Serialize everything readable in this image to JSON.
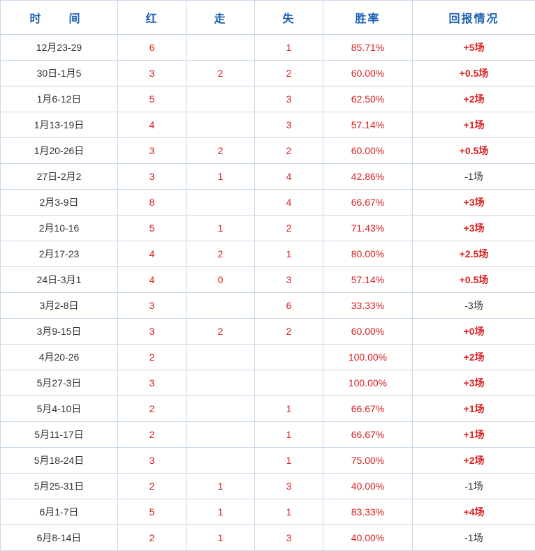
{
  "headers": {
    "time": "时　间",
    "hong": "红",
    "zou": "走",
    "shi": "失",
    "rate": "胜率",
    "return": "回报情况"
  },
  "rows": [
    {
      "time": "12月23-29",
      "hong": "6",
      "zou": "",
      "shi": "1",
      "rate": "85.71%",
      "return": "+5场",
      "return_style": "red-bold"
    },
    {
      "time": "30日-1月5",
      "hong": "3",
      "zou": "2",
      "shi": "2",
      "rate": "60.00%",
      "return": "+0.5场",
      "return_style": "red-bold"
    },
    {
      "time": "1月6-12日",
      "hong": "5",
      "zou": "",
      "shi": "3",
      "rate": "62.50%",
      "return": "+2场",
      "return_style": "red-bold"
    },
    {
      "time": "1月13-19日",
      "hong": "4",
      "zou": "",
      "shi": "3",
      "rate": "57.14%",
      "return": "+1场",
      "return_style": "red-bold"
    },
    {
      "time": "1月20-26日",
      "hong": "3",
      "zou": "2",
      "shi": "2",
      "rate": "60.00%",
      "return": "+0.5场",
      "return_style": "red-bold"
    },
    {
      "time": "27日-2月2",
      "hong": "3",
      "zou": "1",
      "shi": "4",
      "rate": "42.86%",
      "return": "-1场",
      "return_style": "black-text"
    },
    {
      "time": "2月3-9日",
      "hong": "8",
      "zou": "",
      "shi": "4",
      "rate": "66.67%",
      "return": "+3场",
      "return_style": "red-bold"
    },
    {
      "time": "2月10-16",
      "hong": "5",
      "zou": "1",
      "shi": "2",
      "rate": "71.43%",
      "return": "+3场",
      "return_style": "red-bold"
    },
    {
      "time": "2月17-23",
      "hong": "4",
      "zou": "2",
      "shi": "1",
      "rate": "80.00%",
      "return": "+2.5场",
      "return_style": "red-bold"
    },
    {
      "time": "24日-3月1",
      "hong": "4",
      "zou": "0",
      "shi": "3",
      "rate": "57.14%",
      "return": "+0.5场",
      "return_style": "red-bold"
    },
    {
      "time": "3月2-8日",
      "hong": "3",
      "zou": "",
      "shi": "6",
      "rate": "33.33%",
      "return": "-3场",
      "return_style": "black-text"
    },
    {
      "time": "3月9-15日",
      "hong": "3",
      "zou": "2",
      "shi": "2",
      "rate": "60.00%",
      "return": "+0场",
      "return_style": "red-bold"
    },
    {
      "time": "4月20-26",
      "hong": "2",
      "zou": "",
      "shi": "",
      "rate": "100.00%",
      "return": "+2场",
      "return_style": "red-bold"
    },
    {
      "time": "5月27-3日",
      "hong": "3",
      "zou": "",
      "shi": "",
      "rate": "100.00%",
      "return": "+3场",
      "return_style": "red-bold"
    },
    {
      "time": "5月4-10日",
      "hong": "2",
      "zou": "",
      "shi": "1",
      "rate": "66.67%",
      "return": "+1场",
      "return_style": "red-bold"
    },
    {
      "time": "5月11-17日",
      "hong": "2",
      "zou": "",
      "shi": "1",
      "rate": "66.67%",
      "return": "+1场",
      "return_style": "red-bold"
    },
    {
      "time": "5月18-24日",
      "hong": "3",
      "zou": "",
      "shi": "1",
      "rate": "75.00%",
      "return": "+2场",
      "return_style": "red-bold"
    },
    {
      "time": "5月25-31日",
      "hong": "2",
      "zou": "1",
      "shi": "3",
      "rate": "40.00%",
      "return": "-1场",
      "return_style": "black-text"
    },
    {
      "time": "6月1-7日",
      "hong": "5",
      "zou": "1",
      "shi": "1",
      "rate": "83.33%",
      "return": "+4场",
      "return_style": "red-bold"
    },
    {
      "time": "6月8-14日",
      "hong": "2",
      "zou": "1",
      "shi": "3",
      "rate": "40.00%",
      "return": "-1场",
      "return_style": "black-text"
    }
  ],
  "colors": {
    "header_text": "#1a5fb4",
    "border": "#c8d8e8",
    "red": "#d92020",
    "black": "#333333",
    "background": "#ffffff"
  }
}
